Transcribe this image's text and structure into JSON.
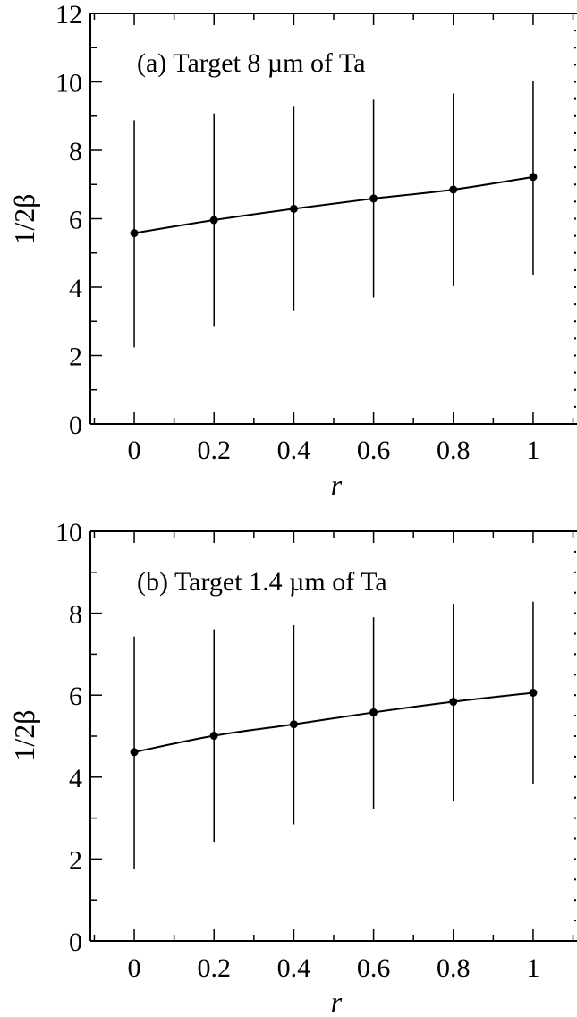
{
  "chart_data": [
    {
      "type": "line",
      "panel_label": "(a)  Target 8 µm of Ta",
      "xlabel": "r",
      "ylabel": "1/2β",
      "xlim": [
        -0.11,
        1.11
      ],
      "ylim": [
        0,
        12
      ],
      "xticks": [
        0,
        0.2,
        0.4,
        0.6,
        0.8,
        1
      ],
      "xtick_labels": [
        "0",
        "0.2",
        "0.4",
        "0.6",
        "0.8",
        "1"
      ],
      "yticks": [
        0,
        2,
        4,
        6,
        8,
        10,
        12
      ],
      "ytick_labels": [
        "0",
        "2",
        "4",
        "6",
        "8",
        "10",
        "12"
      ],
      "grid": false,
      "legend": "none",
      "x": [
        0,
        0.2,
        0.4,
        0.6,
        0.8,
        1
      ],
      "y": [
        5.58,
        5.96,
        6.29,
        6.59,
        6.85,
        7.22
      ],
      "error_low": [
        2.24,
        2.84,
        3.3,
        3.7,
        4.03,
        4.36
      ],
      "error_high": [
        8.88,
        9.08,
        9.27,
        9.48,
        9.66,
        10.04
      ]
    },
    {
      "type": "line",
      "panel_label": "(b) Target 1.4 µm of Ta",
      "xlabel": "r",
      "ylabel": "1/2β",
      "xlim": [
        -0.11,
        1.11
      ],
      "ylim": [
        0,
        10
      ],
      "xticks": [
        0,
        0.2,
        0.4,
        0.6,
        0.8,
        1
      ],
      "xtick_labels": [
        "0",
        "0.2",
        "0.4",
        "0.6",
        "0.8",
        "1"
      ],
      "yticks": [
        0,
        2,
        4,
        6,
        8,
        10
      ],
      "ytick_labels": [
        "0",
        "2",
        "4",
        "6",
        "8",
        "10"
      ],
      "grid": false,
      "legend": "none",
      "x": [
        0,
        0.2,
        0.4,
        0.6,
        0.8,
        1
      ],
      "y": [
        4.61,
        5.01,
        5.29,
        5.58,
        5.84,
        6.06
      ],
      "error_low": [
        1.76,
        2.42,
        2.85,
        3.23,
        3.42,
        3.82
      ],
      "error_high": [
        7.43,
        7.61,
        7.71,
        7.9,
        8.23,
        8.28
      ]
    }
  ]
}
